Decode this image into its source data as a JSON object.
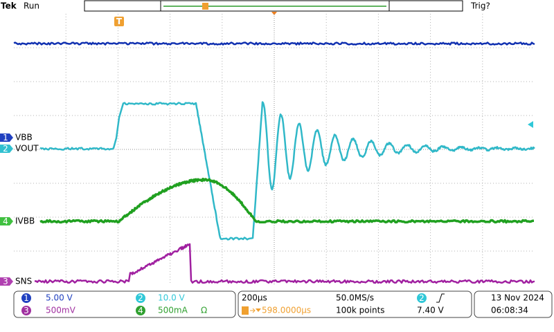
{
  "header": {
    "brand": "Tek",
    "status": "Run",
    "trigger_status": "Trig?"
  },
  "markers": {
    "trigger": "T"
  },
  "channels": [
    {
      "number": "1",
      "label": "VBB",
      "scale": "5.00 V"
    },
    {
      "number": "2",
      "label": "VOUT",
      "scale": "10.0 V"
    },
    {
      "number": "3",
      "label": "SNS",
      "scale": "500mV"
    },
    {
      "number": "4",
      "label": "IVBB",
      "scale": "500mA",
      "suffix": "Ω"
    }
  ],
  "timebase": {
    "scale": "200µs",
    "sample_rate": "50.0MS/s",
    "position": "598.0000µs",
    "record_length": "100k points"
  },
  "trigger": {
    "source": "2",
    "level": "7.40 V"
  },
  "datetime": {
    "date": "13 Nov 2024",
    "time": "06:08:34"
  }
}
